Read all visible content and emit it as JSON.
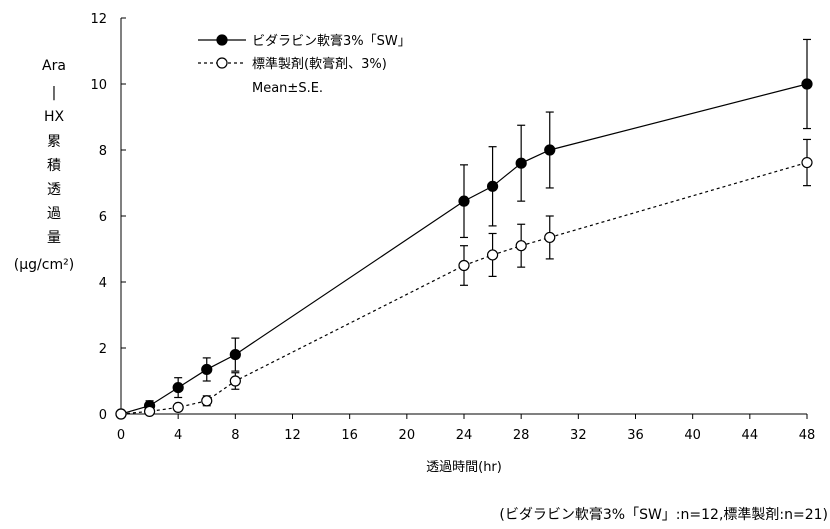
{
  "chart_data": {
    "type": "line",
    "xlabel": "透過時間(hr)",
    "ylabel_parts": [
      "Ara",
      "|",
      "HX",
      "累",
      "積",
      "透",
      "過",
      "量",
      "(μg/cm²)"
    ],
    "xlim": [
      0,
      48
    ],
    "ylim": [
      0,
      12
    ],
    "xticks": [
      0,
      4,
      8,
      12,
      16,
      20,
      24,
      28,
      32,
      36,
      40,
      44,
      48
    ],
    "yticks": [
      0,
      2,
      4,
      6,
      8,
      10,
      12
    ],
    "x": [
      0,
      2,
      4,
      6,
      8,
      24,
      26,
      28,
      30,
      48
    ],
    "grid": false,
    "legend_position": "top-left",
    "legend_note": "Mean±S.E.",
    "series": [
      {
        "name": "ビダラビン軟膏3%「SW」",
        "marker": "filled-circle",
        "line_style": "solid",
        "values": [
          0,
          0.25,
          0.8,
          1.35,
          1.8,
          6.45,
          6.9,
          7.6,
          8.0,
          10.0
        ],
        "errors": [
          0,
          0.15,
          0.3,
          0.35,
          0.5,
          1.1,
          1.2,
          1.15,
          1.15,
          1.35
        ]
      },
      {
        "name": "標準製剤(軟膏剤、3%)",
        "marker": "open-circle",
        "line_style": "dashed",
        "values": [
          0,
          0.08,
          0.2,
          0.4,
          1.0,
          4.5,
          4.82,
          5.1,
          5.35,
          7.62
        ],
        "errors": [
          0,
          0.05,
          0.1,
          0.15,
          0.25,
          0.6,
          0.65,
          0.65,
          0.65,
          0.7
        ]
      }
    ],
    "footnote": "(ビダラビン軟膏3%「SW」:n=12,標準製剤:n=21)"
  }
}
